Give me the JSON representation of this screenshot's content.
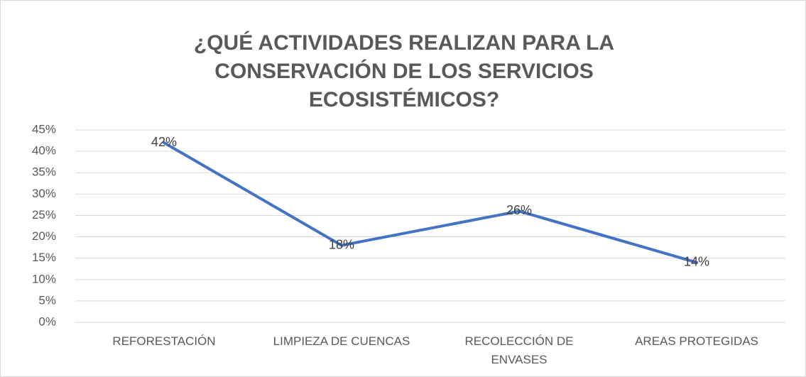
{
  "chart_data": {
    "type": "line",
    "title": "¿QUÉ ACTIVIDADES REALIZAN PARA LA CONSERVACIÓN DE LOS SERVICIOS ECOSISTÉMICOS?",
    "categories": [
      "REFORESTACIÓN",
      "LIMPIEZA DE CUENCAS",
      "RECOLECCIÓN DE ENVASES",
      "AREAS PROTEGIDAS"
    ],
    "values": [
      42,
      18,
      26,
      14
    ],
    "value_labels": [
      "42%",
      "18%",
      "26%",
      "14%"
    ],
    "color": "#4472c4",
    "ylim": [
      0,
      45
    ],
    "yticks": [
      {
        "value": 0,
        "label": "0%"
      },
      {
        "value": 5,
        "label": "5%"
      },
      {
        "value": 10,
        "label": "10%"
      },
      {
        "value": 15,
        "label": "15%"
      },
      {
        "value": 20,
        "label": "20%"
      },
      {
        "value": 25,
        "label": "25%"
      },
      {
        "value": 30,
        "label": "30%"
      },
      {
        "value": 35,
        "label": "35%"
      },
      {
        "value": 40,
        "label": "40%"
      },
      {
        "value": 45,
        "label": "45%"
      }
    ],
    "grid": true
  }
}
